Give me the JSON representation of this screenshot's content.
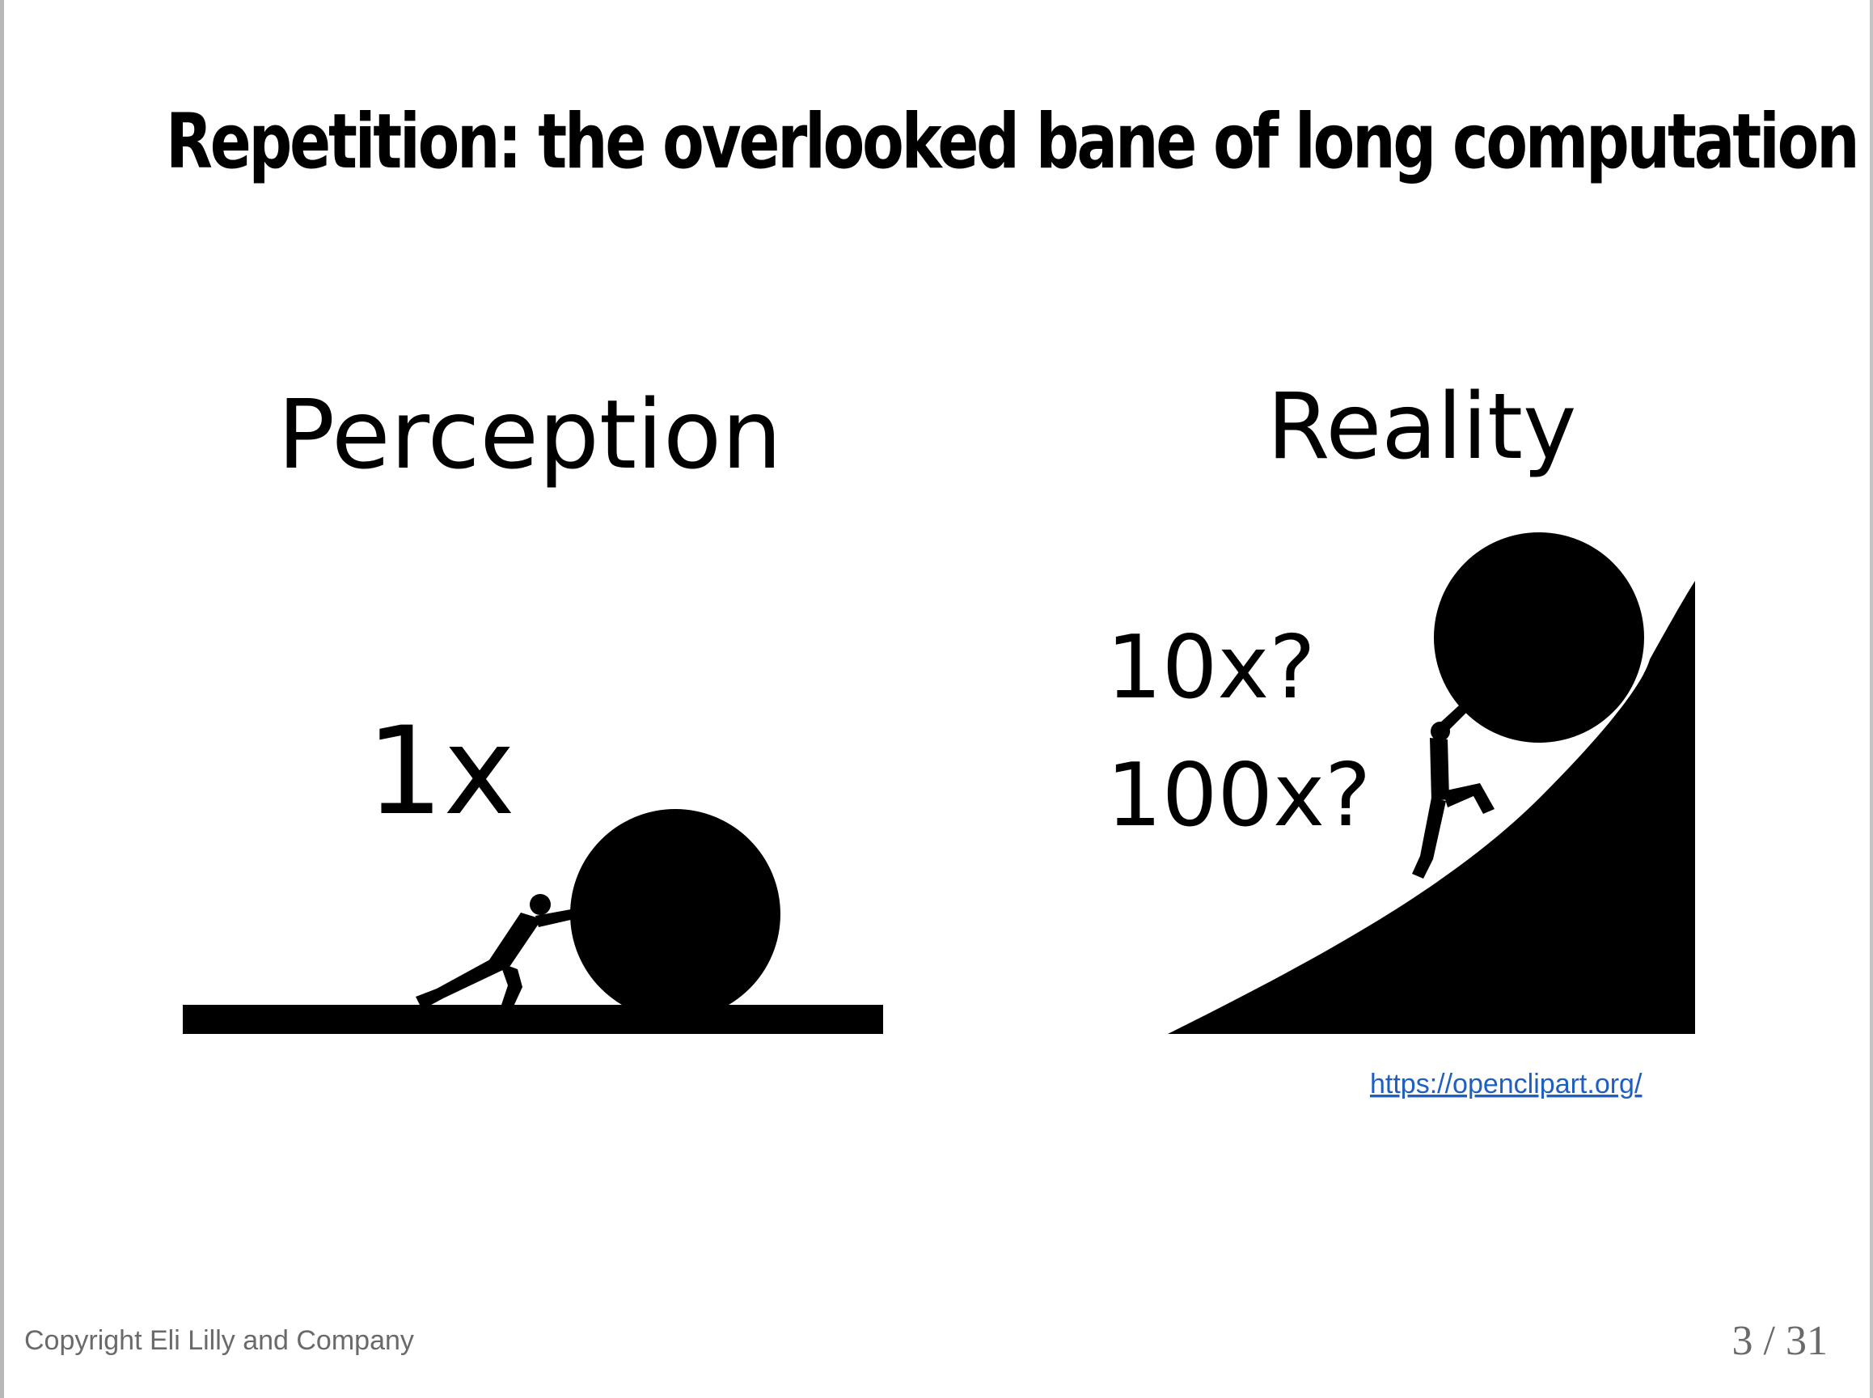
{
  "slide": {
    "title": "Repetition: the overlooked bane of long computation",
    "footer": "Copyright Eli Lilly and Company",
    "page_number": "3 / 31"
  },
  "perception": {
    "heading": "Perception",
    "multiplier": "1x"
  },
  "reality": {
    "heading": "Reality",
    "multiplier_1": "10x?",
    "multiplier_2": "100x?"
  },
  "credit": {
    "link_text": "https://openclipart.org/"
  },
  "colors": {
    "text": "#000000",
    "footer_text": "#6a6a6a",
    "link": "#1f5fbf",
    "frame": "#b8b8b8"
  }
}
